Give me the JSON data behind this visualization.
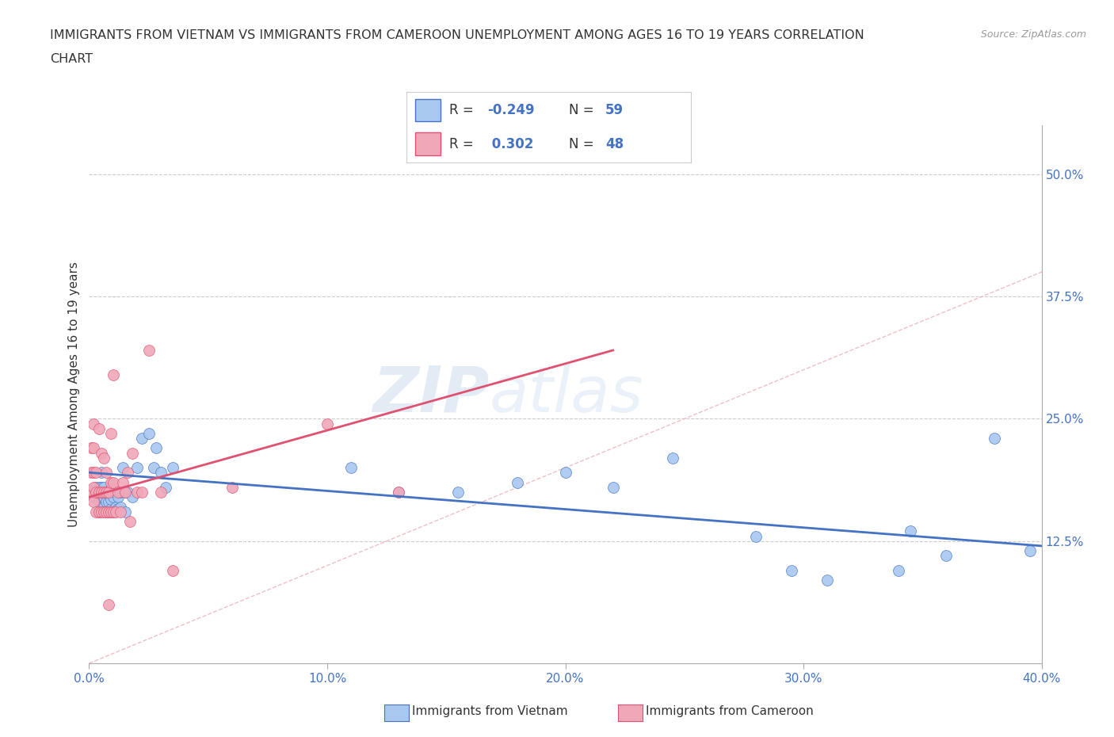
{
  "title_line1": "IMMIGRANTS FROM VIETNAM VS IMMIGRANTS FROM CAMEROON UNEMPLOYMENT AMONG AGES 16 TO 19 YEARS CORRELATION",
  "title_line2": "CHART",
  "source": "Source: ZipAtlas.com",
  "ylabel": "Unemployment Among Ages 16 to 19 years",
  "xlim": [
    0.0,
    0.4
  ],
  "ylim": [
    0.0,
    0.55
  ],
  "xticks": [
    0.0,
    0.1,
    0.2,
    0.3,
    0.4
  ],
  "xticklabels": [
    "0.0%",
    "10.0%",
    "20.0%",
    "30.0%",
    "40.0%"
  ],
  "yticks_right": [
    0.125,
    0.25,
    0.375,
    0.5
  ],
  "ytick_labels_right": [
    "12.5%",
    "25.0%",
    "37.5%",
    "50.0%"
  ],
  "color_vietnam": "#A8C8F0",
  "color_cameroon": "#F0A8B8",
  "line_color_vietnam": "#4472C4",
  "line_color_cameroon": "#E05070",
  "diagonal_color": "#E8B0B8",
  "background_color": "#FFFFFF",
  "watermark_zip": "ZIP",
  "watermark_atlas": "atlas",
  "vietnam_x": [
    0.001,
    0.002,
    0.003,
    0.003,
    0.004,
    0.004,
    0.004,
    0.005,
    0.005,
    0.005,
    0.005,
    0.006,
    0.006,
    0.006,
    0.007,
    0.007,
    0.007,
    0.008,
    0.008,
    0.008,
    0.009,
    0.009,
    0.009,
    0.01,
    0.01,
    0.011,
    0.011,
    0.012,
    0.012,
    0.013,
    0.013,
    0.014,
    0.015,
    0.015,
    0.016,
    0.018,
    0.02,
    0.022,
    0.025,
    0.027,
    0.028,
    0.03,
    0.032,
    0.035,
    0.11,
    0.13,
    0.155,
    0.18,
    0.2,
    0.22,
    0.245,
    0.28,
    0.295,
    0.31,
    0.34,
    0.345,
    0.36,
    0.38,
    0.395
  ],
  "vietnam_y": [
    0.175,
    0.17,
    0.175,
    0.18,
    0.155,
    0.165,
    0.18,
    0.16,
    0.17,
    0.18,
    0.195,
    0.16,
    0.17,
    0.18,
    0.155,
    0.165,
    0.175,
    0.155,
    0.165,
    0.175,
    0.158,
    0.168,
    0.178,
    0.155,
    0.17,
    0.16,
    0.175,
    0.158,
    0.17,
    0.16,
    0.175,
    0.2,
    0.155,
    0.175,
    0.175,
    0.17,
    0.2,
    0.23,
    0.235,
    0.2,
    0.22,
    0.195,
    0.18,
    0.2,
    0.2,
    0.175,
    0.175,
    0.185,
    0.195,
    0.18,
    0.21,
    0.13,
    0.095,
    0.085,
    0.095,
    0.135,
    0.11,
    0.23,
    0.115
  ],
  "cameroon_x": [
    0.001,
    0.001,
    0.001,
    0.002,
    0.002,
    0.002,
    0.002,
    0.002,
    0.003,
    0.003,
    0.003,
    0.004,
    0.004,
    0.004,
    0.005,
    0.005,
    0.005,
    0.006,
    0.006,
    0.006,
    0.007,
    0.007,
    0.007,
    0.008,
    0.008,
    0.008,
    0.009,
    0.009,
    0.009,
    0.01,
    0.01,
    0.01,
    0.011,
    0.012,
    0.013,
    0.014,
    0.015,
    0.016,
    0.017,
    0.018,
    0.02,
    0.022,
    0.025,
    0.03,
    0.035,
    0.06,
    0.1,
    0.13
  ],
  "cameroon_y": [
    0.175,
    0.195,
    0.22,
    0.165,
    0.18,
    0.195,
    0.22,
    0.245,
    0.155,
    0.175,
    0.195,
    0.155,
    0.175,
    0.24,
    0.155,
    0.175,
    0.215,
    0.155,
    0.175,
    0.21,
    0.155,
    0.175,
    0.195,
    0.06,
    0.155,
    0.175,
    0.155,
    0.185,
    0.235,
    0.155,
    0.185,
    0.295,
    0.155,
    0.175,
    0.155,
    0.185,
    0.175,
    0.195,
    0.145,
    0.215,
    0.175,
    0.175,
    0.32,
    0.175,
    0.095,
    0.18,
    0.245,
    0.175
  ],
  "viet_trend_x0": 0.0,
  "viet_trend_y0": 0.195,
  "viet_trend_x1": 0.4,
  "viet_trend_y1": 0.12,
  "cam_trend_x0": 0.0,
  "cam_trend_y0": 0.17,
  "cam_trend_x1": 0.22,
  "cam_trend_y1": 0.32
}
